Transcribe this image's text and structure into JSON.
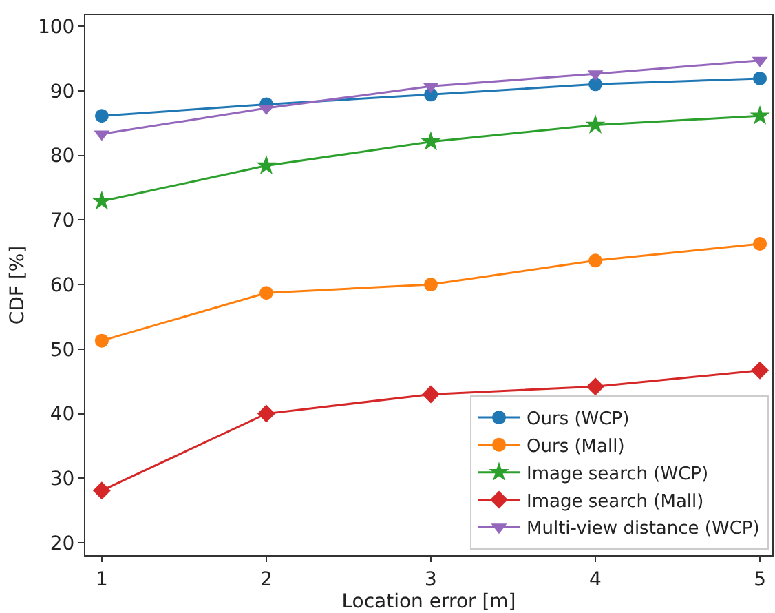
{
  "chart_data": {
    "type": "line",
    "xlabel": "Location error [m]",
    "ylabel": "CDF [%]",
    "x": [
      1,
      2,
      3,
      4,
      5
    ],
    "xlim": [
      0.9,
      5.075
    ],
    "xticks": [
      1,
      2,
      3,
      4,
      5
    ],
    "ylim": [
      18.1,
      101.7
    ],
    "yticks": [
      20,
      30,
      40,
      50,
      60,
      70,
      80,
      90,
      100
    ],
    "legend": "bottom right",
    "line_style": "solid",
    "series": [
      {
        "name": "Ours (WCP)",
        "color": "#1f77b4",
        "marker": "circle",
        "values": [
          86.1,
          87.9,
          89.4,
          91.0,
          91.9
        ]
      },
      {
        "name": "Ours (Mall)",
        "color": "#ff7f0e",
        "marker": "circle",
        "values": [
          51.3,
          58.7,
          60.0,
          63.7,
          66.3
        ]
      },
      {
        "name": "Image search (WCP)",
        "color": "#2ca02c",
        "marker": "star",
        "values": [
          72.9,
          78.4,
          82.1,
          84.7,
          86.1
        ]
      },
      {
        "name": "Image search (Mall)",
        "color": "#d62728",
        "marker": "diamond",
        "values": [
          28.1,
          40.0,
          43.0,
          44.2,
          46.7
        ]
      },
      {
        "name": "Multi-view distance (WCP)",
        "color": "#9467bd",
        "marker": "triangle-down",
        "values": [
          83.3,
          87.3,
          90.7,
          92.6,
          94.7
        ]
      }
    ]
  }
}
